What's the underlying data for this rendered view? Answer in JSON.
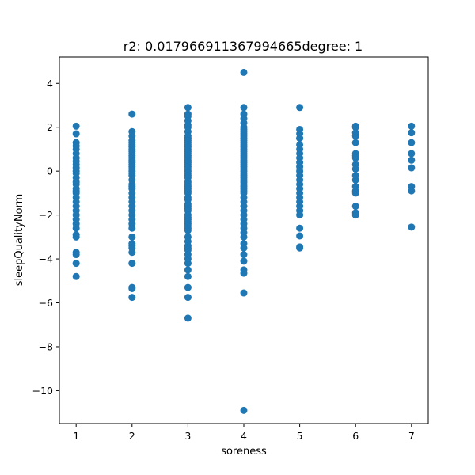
{
  "chart_data": {
    "type": "scatter",
    "title": "r2: 0.017966911367994665degree: 1",
    "xlabel": "soreness",
    "ylabel": "sleepQualityNorm",
    "xlim": [
      0.7,
      7.3
    ],
    "ylim": [
      -11.5,
      5.2
    ],
    "xticks": [
      1,
      2,
      3,
      4,
      5,
      6,
      7
    ],
    "yticks": [
      4,
      2,
      0,
      -2,
      -4,
      -6,
      -8,
      -10
    ],
    "ytick_labels": [
      "4",
      "2",
      "0",
      "−2",
      "−4",
      "−6",
      "−8",
      "−10"
    ],
    "grid": false,
    "marker_color": "#1f77b4",
    "series": [
      {
        "x": 1,
        "y": [
          2.05,
          1.7,
          1.3,
          1.15,
          1.0,
          0.8,
          0.6,
          0.45,
          0.3,
          0.15,
          0.0,
          -0.1,
          -0.3,
          -0.5,
          -0.6,
          -0.8,
          -0.9,
          -1.0,
          -1.2,
          -1.4,
          -1.6,
          -1.8,
          -2.0,
          -2.2,
          -2.4,
          -2.6,
          -2.9,
          -3.0,
          -3.7,
          -3.8,
          -4.2,
          -4.8
        ]
      },
      {
        "x": 2,
        "y": [
          2.6,
          1.8,
          1.6,
          1.4,
          1.3,
          1.2,
          1.1,
          1.0,
          0.9,
          0.8,
          0.7,
          0.6,
          0.5,
          0.4,
          0.3,
          0.2,
          0.1,
          0.0,
          -0.1,
          -0.2,
          -0.4,
          -0.6,
          -0.7,
          -0.8,
          -1.0,
          -1.2,
          -1.4,
          -1.6,
          -1.8,
          -2.0,
          -2.2,
          -2.4,
          -2.6,
          -3.0,
          -3.3,
          -3.4,
          -3.5,
          -3.7,
          -4.2,
          -5.3,
          -5.35,
          -5.75
        ]
      },
      {
        "x": 3,
        "y": [
          2.9,
          2.6,
          2.5,
          2.3,
          2.1,
          2.0,
          1.8,
          1.6,
          1.5,
          1.4,
          1.3,
          1.2,
          1.1,
          1.0,
          0.9,
          0.8,
          0.7,
          0.6,
          0.5,
          0.4,
          0.3,
          0.2,
          0.1,
          0.0,
          -0.1,
          -0.2,
          -0.3,
          -0.5,
          -0.6,
          -0.7,
          -0.8,
          -0.9,
          -1.0,
          -1.2,
          -1.3,
          -1.5,
          -1.6,
          -1.7,
          -1.8,
          -2.0,
          -2.1,
          -2.2,
          -2.3,
          -2.4,
          -2.5,
          -2.6,
          -2.7,
          -3.0,
          -3.2,
          -3.4,
          -3.5,
          -3.6,
          -3.8,
          -4.0,
          -4.2,
          -4.5,
          -4.8,
          -5.3,
          -5.75,
          -6.7
        ]
      },
      {
        "x": 4,
        "y": [
          4.5,
          2.9,
          2.6,
          2.4,
          2.2,
          2.0,
          1.9,
          1.8,
          1.7,
          1.6,
          1.5,
          1.4,
          1.3,
          1.2,
          1.1,
          1.0,
          0.9,
          0.8,
          0.7,
          0.6,
          0.5,
          0.4,
          0.3,
          0.2,
          0.1,
          0.0,
          -0.1,
          -0.2,
          -0.3,
          -0.4,
          -0.5,
          -0.6,
          -0.7,
          -0.8,
          -0.9,
          -1.0,
          -1.2,
          -1.4,
          -1.6,
          -1.8,
          -2.0,
          -2.2,
          -2.4,
          -2.6,
          -2.8,
          -3.0,
          -3.3,
          -3.5,
          -3.8,
          -4.1,
          -4.5,
          -4.65,
          -5.55,
          -10.9
        ]
      },
      {
        "x": 5,
        "y": [
          2.9,
          1.9,
          1.7,
          1.5,
          1.2,
          1.0,
          0.8,
          0.6,
          0.4,
          0.2,
          0.0,
          -0.2,
          -0.4,
          -0.6,
          -0.8,
          -1.0,
          -1.2,
          -1.4,
          -1.6,
          -1.8,
          -2.0,
          -2.6,
          -2.95,
          -3.45,
          -3.5
        ]
      },
      {
        "x": 6,
        "y": [
          2.05,
          2.0,
          1.75,
          1.6,
          1.3,
          0.8,
          0.7,
          0.6,
          0.3,
          0.1,
          -0.2,
          -0.4,
          -0.7,
          -0.9,
          -1.0,
          -1.6,
          -1.9,
          -2.0
        ]
      },
      {
        "x": 7,
        "y": [
          2.05,
          1.75,
          1.3,
          0.8,
          0.5,
          0.15,
          -0.7,
          -0.9,
          -2.55
        ]
      }
    ]
  }
}
